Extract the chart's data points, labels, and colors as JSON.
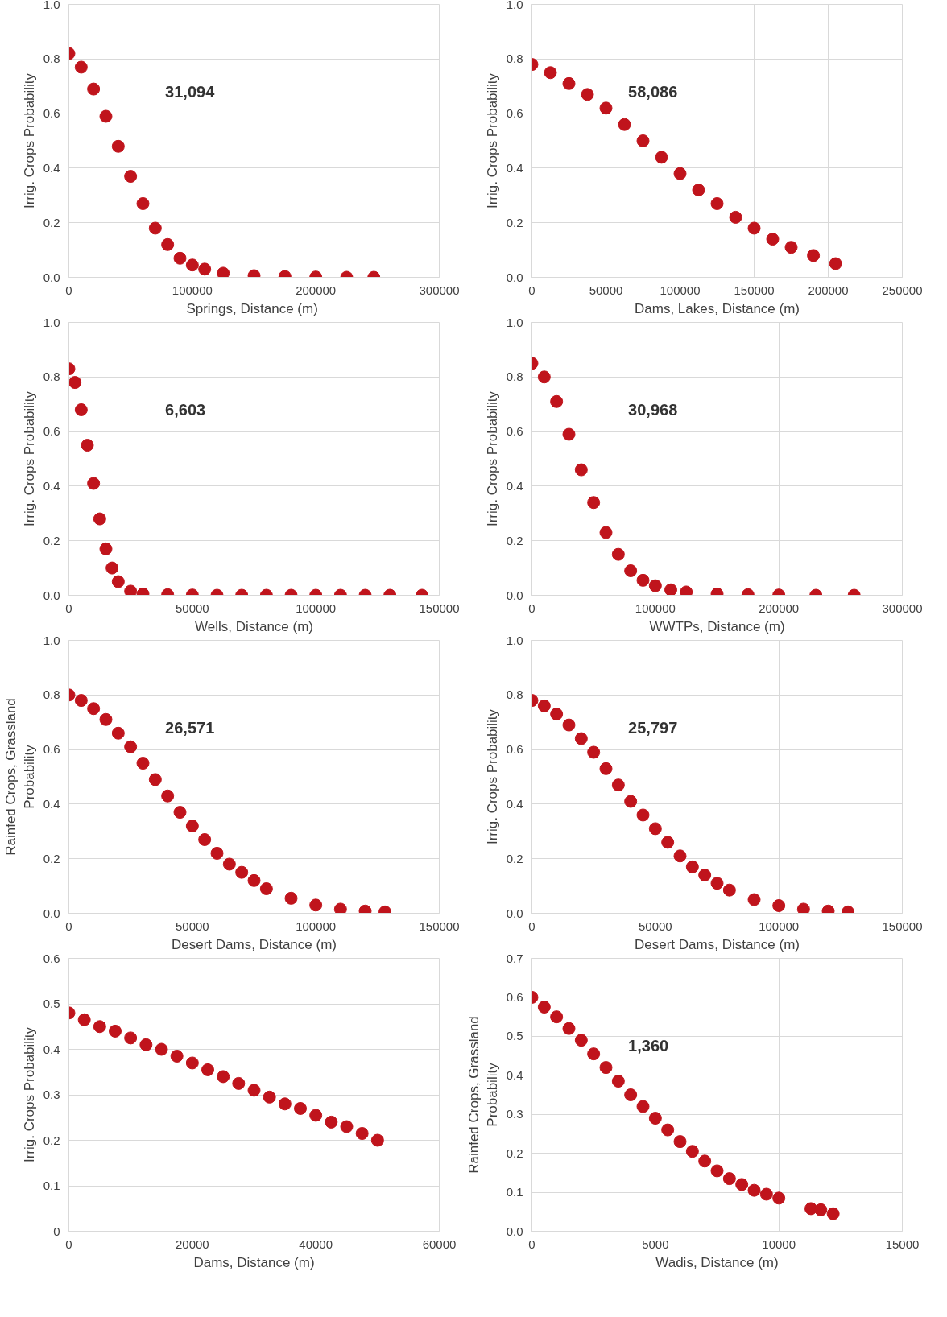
{
  "chart_data": [
    {
      "type": "scatter",
      "xlabel": "Springs, Distance  (m)",
      "ylabel": "Irrig. Crops Probability",
      "annotations": [
        "31,094"
      ],
      "marker": "circle",
      "grid": true,
      "xlim": [
        0,
        300000
      ],
      "xticks": [
        0,
        100000,
        200000,
        300000
      ],
      "ylim": [
        0,
        1
      ],
      "yticks": [
        {
          "value": 0,
          "label": "0.0"
        },
        {
          "value": 0.2,
          "label": "0.2"
        },
        {
          "value": 0.4,
          "label": "0.4"
        },
        {
          "value": 0.6,
          "label": "0.6"
        },
        {
          "value": 0.8,
          "label": "0.8"
        },
        {
          "value": 1,
          "label": "1.0"
        }
      ],
      "series": [
        {
          "color": "#c0141c",
          "x": [
            0,
            10000,
            20000,
            30000,
            40000,
            50000,
            60000,
            70000,
            80000,
            90000,
            100000,
            110000,
            125000,
            150000,
            175000,
            200000,
            225000,
            247000
          ],
          "values": [
            0.82,
            0.77,
            0.69,
            0.59,
            0.48,
            0.37,
            0.27,
            0.18,
            0.12,
            0.07,
            0.045,
            0.03,
            0.015,
            0.006,
            0.003,
            0.001,
            0.0,
            0.0
          ]
        }
      ]
    },
    {
      "type": "scatter",
      "xlabel": "Dams, Lakes, Distance (m)",
      "ylabel": "Irrig. Crops Probability",
      "annotations": [
        "58,086"
      ],
      "marker": "circle",
      "grid": true,
      "xlim": [
        0,
        250000
      ],
      "xticks": [
        0,
        50000,
        100000,
        150000,
        200000,
        250000
      ],
      "ylim": [
        0,
        1
      ],
      "yticks": [
        {
          "value": 0,
          "label": "0.0"
        },
        {
          "value": 0.2,
          "label": "0.2"
        },
        {
          "value": 0.4,
          "label": "0.4"
        },
        {
          "value": 0.6,
          "label": "0.6"
        },
        {
          "value": 0.8,
          "label": "0.8"
        },
        {
          "value": 1,
          "label": "1.0"
        }
      ],
      "series": [
        {
          "color": "#c0141c",
          "x": [
            0,
            12500,
            25000,
            37500,
            50000,
            62500,
            75000,
            87500,
            100000,
            112500,
            125000,
            137500,
            150000,
            162500,
            175000,
            190000,
            205000
          ],
          "values": [
            0.78,
            0.75,
            0.71,
            0.67,
            0.62,
            0.56,
            0.5,
            0.44,
            0.38,
            0.32,
            0.27,
            0.22,
            0.18,
            0.14,
            0.11,
            0.08,
            0.05
          ]
        }
      ]
    },
    {
      "type": "scatter",
      "xlabel": "Wells, Distance (m)",
      "ylabel": "Irrig. Crops Probability",
      "annotations": [
        "6,603"
      ],
      "marker": "circle",
      "grid": true,
      "xlim": [
        0,
        150000
      ],
      "xticks": [
        0,
        50000,
        100000,
        150000
      ],
      "ylim": [
        0,
        1
      ],
      "yticks": [
        {
          "value": 0,
          "label": "0.0"
        },
        {
          "value": 0.2,
          "label": "0.2"
        },
        {
          "value": 0.4,
          "label": "0.4"
        },
        {
          "value": 0.6,
          "label": "0.6"
        },
        {
          "value": 0.8,
          "label": "0.8"
        },
        {
          "value": 1,
          "label": "1.0"
        }
      ],
      "series": [
        {
          "color": "#c0141c",
          "x": [
            0,
            2500,
            5000,
            7500,
            10000,
            12500,
            15000,
            17500,
            20000,
            25000,
            30000,
            40000,
            50000,
            60000,
            70000,
            80000,
            90000,
            100000,
            110000,
            120000,
            130000,
            143000
          ],
          "values": [
            0.83,
            0.78,
            0.68,
            0.55,
            0.41,
            0.28,
            0.17,
            0.1,
            0.05,
            0.015,
            0.005,
            0.002,
            0.001,
            0.0,
            0.0,
            0.0,
            0.0,
            0.0,
            0.0,
            0.0,
            0.0,
            0.0
          ]
        }
      ]
    },
    {
      "type": "scatter",
      "xlabel": "WWTPs, Distance (m)",
      "ylabel": "Irrig. Crops Probability",
      "annotations": [
        "30,968"
      ],
      "marker": "circle",
      "grid": true,
      "xlim": [
        0,
        300000
      ],
      "xticks": [
        0,
        100000,
        200000,
        300000
      ],
      "ylim": [
        0,
        1
      ],
      "yticks": [
        {
          "value": 0,
          "label": "0.0"
        },
        {
          "value": 0.2,
          "label": "0.2"
        },
        {
          "value": 0.4,
          "label": "0.4"
        },
        {
          "value": 0.6,
          "label": "0.6"
        },
        {
          "value": 0.8,
          "label": "0.8"
        },
        {
          "value": 1,
          "label": "1.0"
        }
      ],
      "series": [
        {
          "color": "#c0141c",
          "x": [
            0,
            10000,
            20000,
            30000,
            40000,
            50000,
            60000,
            70000,
            80000,
            90000,
            100000,
            112500,
            125000,
            150000,
            175000,
            200000,
            230000,
            261000
          ],
          "values": [
            0.85,
            0.8,
            0.71,
            0.59,
            0.46,
            0.34,
            0.23,
            0.15,
            0.09,
            0.055,
            0.035,
            0.02,
            0.012,
            0.005,
            0.002,
            0.001,
            0.0,
            0.0
          ]
        }
      ]
    },
    {
      "type": "scatter",
      "xlabel": "Desert Dams, Distance (m)",
      "ylabel": "Rainfed Crops, Grassland Probability",
      "annotations": [
        "26,571"
      ],
      "marker": "circle",
      "grid": true,
      "xlim": [
        0,
        150000
      ],
      "xticks": [
        0,
        50000,
        100000,
        150000
      ],
      "ylim": [
        0,
        1
      ],
      "yticks": [
        {
          "value": 0,
          "label": "0.0"
        },
        {
          "value": 0.2,
          "label": "0.2"
        },
        {
          "value": 0.4,
          "label": "0.4"
        },
        {
          "value": 0.6,
          "label": "0.6"
        },
        {
          "value": 0.8,
          "label": "0.8"
        },
        {
          "value": 1,
          "label": "1.0"
        }
      ],
      "series": [
        {
          "color": "#c0141c",
          "x": [
            0,
            5000,
            10000,
            15000,
            20000,
            25000,
            30000,
            35000,
            40000,
            45000,
            50000,
            55000,
            60000,
            65000,
            70000,
            75000,
            80000,
            90000,
            100000,
            110000,
            120000,
            128000
          ],
          "values": [
            0.8,
            0.78,
            0.75,
            0.71,
            0.66,
            0.61,
            0.55,
            0.49,
            0.43,
            0.37,
            0.32,
            0.27,
            0.22,
            0.18,
            0.15,
            0.12,
            0.09,
            0.055,
            0.03,
            0.015,
            0.008,
            0.005
          ]
        }
      ]
    },
    {
      "type": "scatter",
      "xlabel": "Desert Dams, Distance (m)",
      "ylabel": "Irrig. Crops Probability",
      "annotations": [
        "25,797"
      ],
      "marker": "circle",
      "grid": true,
      "xlim": [
        0,
        150000
      ],
      "xticks": [
        0,
        50000,
        100000,
        150000
      ],
      "ylim": [
        0,
        1
      ],
      "yticks": [
        {
          "value": 0,
          "label": "0.0"
        },
        {
          "value": 0.2,
          "label": "0.2"
        },
        {
          "value": 0.4,
          "label": "0.4"
        },
        {
          "value": 0.6,
          "label": "0.6"
        },
        {
          "value": 0.8,
          "label": "0.8"
        },
        {
          "value": 1,
          "label": "1.0"
        }
      ],
      "series": [
        {
          "color": "#c0141c",
          "x": [
            0,
            5000,
            10000,
            15000,
            20000,
            25000,
            30000,
            35000,
            40000,
            45000,
            50000,
            55000,
            60000,
            65000,
            70000,
            75000,
            80000,
            90000,
            100000,
            110000,
            120000,
            128000
          ],
          "values": [
            0.78,
            0.76,
            0.73,
            0.69,
            0.64,
            0.59,
            0.53,
            0.47,
            0.41,
            0.36,
            0.31,
            0.26,
            0.21,
            0.17,
            0.14,
            0.11,
            0.085,
            0.05,
            0.028,
            0.015,
            0.008,
            0.005
          ]
        }
      ]
    },
    {
      "type": "scatter",
      "xlabel": "Dams, Distance (m)",
      "ylabel": "Irrig. Crops Probability",
      "marker": "circle",
      "grid": true,
      "xlim": [
        0,
        60000
      ],
      "xticks": [
        0,
        20000,
        40000,
        60000
      ],
      "ylim": [
        0,
        0.6
      ],
      "yticks": [
        0,
        0.1,
        0.2,
        0.3,
        0.4,
        0.5,
        0.6
      ],
      "series": [
        {
          "color": "#c0141c",
          "x": [
            0,
            2500,
            5000,
            7500,
            10000,
            12500,
            15000,
            17500,
            20000,
            22500,
            25000,
            27500,
            30000,
            32500,
            35000,
            37500,
            40000,
            42500,
            45000,
            47500,
            50000
          ],
          "values": [
            0.48,
            0.465,
            0.45,
            0.44,
            0.425,
            0.41,
            0.4,
            0.385,
            0.37,
            0.355,
            0.34,
            0.325,
            0.31,
            0.295,
            0.28,
            0.27,
            0.255,
            0.24,
            0.23,
            0.215,
            0.2
          ]
        }
      ]
    },
    {
      "type": "scatter",
      "xlabel": "Wadis, Distance (m)",
      "ylabel": "Rainfed Crops, Grassland Probability",
      "annotations": [
        "1,360"
      ],
      "marker": "circle",
      "grid": true,
      "xlim": [
        0,
        15000
      ],
      "xticks": [
        0,
        5000,
        10000,
        15000
      ],
      "ylim": [
        0,
        0.7
      ],
      "yticks": [
        {
          "value": 0,
          "label": "0.0"
        },
        0.1,
        0.2,
        0.3,
        0.4,
        0.5,
        0.6,
        0.7
      ],
      "series": [
        {
          "color": "#c0141c",
          "x": [
            0,
            500,
            1000,
            1500,
            2000,
            2500,
            3000,
            3500,
            4000,
            4500,
            5000,
            5500,
            6000,
            6500,
            7000,
            7500,
            8000,
            8500,
            9000,
            9500,
            10000,
            11300,
            11700,
            12200
          ],
          "values": [
            0.6,
            0.575,
            0.55,
            0.52,
            0.49,
            0.455,
            0.42,
            0.385,
            0.35,
            0.32,
            0.29,
            0.26,
            0.23,
            0.205,
            0.18,
            0.155,
            0.135,
            0.12,
            0.105,
            0.095,
            0.085,
            0.058,
            0.055,
            0.045
          ]
        }
      ]
    }
  ]
}
